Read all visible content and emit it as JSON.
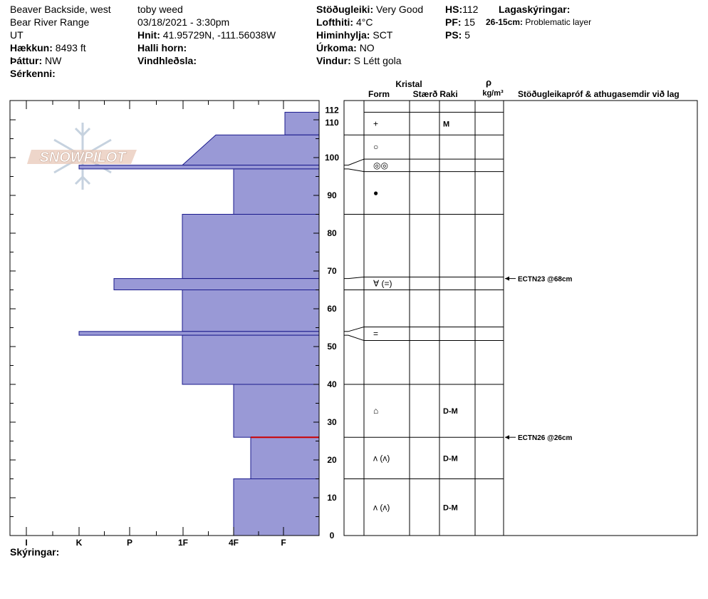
{
  "header": {
    "col1": [
      "Beaver Backside, west",
      "Bear River Range",
      "UT"
    ],
    "elevation": {
      "label": "Hækkun:",
      "value": "8493 ft"
    },
    "aspect": {
      "label": "Þáttur:",
      "value": "NW"
    },
    "specifics": {
      "label": "Sérkenni:",
      "value": ""
    },
    "observer": "toby weed",
    "datetime": "03/18/2021 - 3:30pm",
    "coords": {
      "label": "Hnit:",
      "value": "41.95729N, -111.56038W"
    },
    "slope": {
      "label": "Halli horn:",
      "value": ""
    },
    "wind_loading": {
      "label": "Vindhleðsla:",
      "value": ""
    },
    "stability": {
      "label": "Stöðugleiki:",
      "value": "Very Good"
    },
    "air_temp": {
      "label": "Lofthiti:",
      "value": "4°C"
    },
    "sky": {
      "label": "Himinhylja:",
      "value": "SCT"
    },
    "precip": {
      "label": "Úrkoma:",
      "value": "NO"
    },
    "wind": {
      "label": "Vindur:",
      "value": "S Létt gola"
    },
    "hs": {
      "label": "HS:",
      "value": "112"
    },
    "pf": {
      "label": "PF:",
      "value": "15"
    },
    "ps": {
      "label": "PS:",
      "value": "5"
    },
    "layer_notes": {
      "label": "Lagaskýringar:",
      "range": "26-15cm:",
      "text": "Problematic layer"
    }
  },
  "logo": {
    "text": "SNOWPILOT"
  },
  "footer": {
    "label": "Skýringar:"
  },
  "table_headers": {
    "crystal": "Kristal",
    "form": "Form",
    "size": "Stærð",
    "moisture": "Raki",
    "rho": "ρ",
    "density_unit": "kg/m³",
    "tests": "Stöðugleikapróf & athugasemdir við lag"
  },
  "colors": {
    "layer_fill": "#9999d6",
    "layer_stroke": "#1a1a8c",
    "weak_line": "#cc0000"
  },
  "chart_data": {
    "type": "bar",
    "title": "",
    "xlabel": "",
    "ylabel": "",
    "hardness_ticks": [
      "I",
      "K",
      "P",
      "1F",
      "4F",
      "F"
    ],
    "height_ticks": [
      0,
      10,
      20,
      30,
      40,
      50,
      60,
      70,
      80,
      90,
      100,
      110,
      112
    ],
    "ylim": [
      0,
      112
    ],
    "layers": [
      {
        "top": 112,
        "bottom": 106,
        "hardness": "F"
      },
      {
        "top": 106,
        "bottom": 98,
        "hardness": "4F-1F"
      },
      {
        "top": 98,
        "bottom": 97,
        "hardness": "K"
      },
      {
        "top": 97,
        "bottom": 85,
        "hardness": "4F"
      },
      {
        "top": 85,
        "bottom": 68,
        "hardness": "1F"
      },
      {
        "top": 68,
        "bottom": 65,
        "hardness": "K+"
      },
      {
        "top": 65,
        "bottom": 54,
        "hardness": "1F"
      },
      {
        "top": 54,
        "bottom": 53,
        "hardness": "K"
      },
      {
        "top": 53,
        "bottom": 40,
        "hardness": "1F"
      },
      {
        "top": 40,
        "bottom": 26,
        "hardness": "4F"
      },
      {
        "top": 26,
        "bottom": 15,
        "hardness": "4F-"
      },
      {
        "top": 15,
        "bottom": 0,
        "hardness": "4F"
      }
    ],
    "crystal_rows": [
      {
        "top": 112,
        "bottom": 106,
        "label": "+",
        "moisture": "M"
      },
      {
        "top": 106,
        "bottom": 98,
        "label": "○",
        "moisture": ""
      },
      {
        "top": 98,
        "bottom": 97,
        "label": "◎◎",
        "moisture": ""
      },
      {
        "top": 97,
        "bottom": 85,
        "label": "●",
        "moisture": ""
      },
      {
        "top": 85,
        "bottom": 68,
        "label": "",
        "moisture": ""
      },
      {
        "top": 68,
        "bottom": 65,
        "label": "∀ (=)",
        "moisture": ""
      },
      {
        "top": 65,
        "bottom": 54,
        "label": "",
        "moisture": ""
      },
      {
        "top": 54,
        "bottom": 53,
        "label": "=",
        "moisture": ""
      },
      {
        "top": 53,
        "bottom": 40,
        "label": "",
        "moisture": ""
      },
      {
        "top": 40,
        "bottom": 26,
        "label": "⌂",
        "moisture": "D-M"
      },
      {
        "top": 26,
        "bottom": 15,
        "label": "ʌ (ʌ)",
        "moisture": "D-M"
      },
      {
        "top": 15,
        "bottom": 0,
        "label": "ʌ (ʌ)",
        "moisture": "D-M"
      }
    ],
    "stability_tests": [
      {
        "height": 68,
        "text": "ECTN23 @68cm"
      },
      {
        "height": 26,
        "text": "ECTN26 @26cm"
      }
    ],
    "weak_layer_height": 26
  }
}
